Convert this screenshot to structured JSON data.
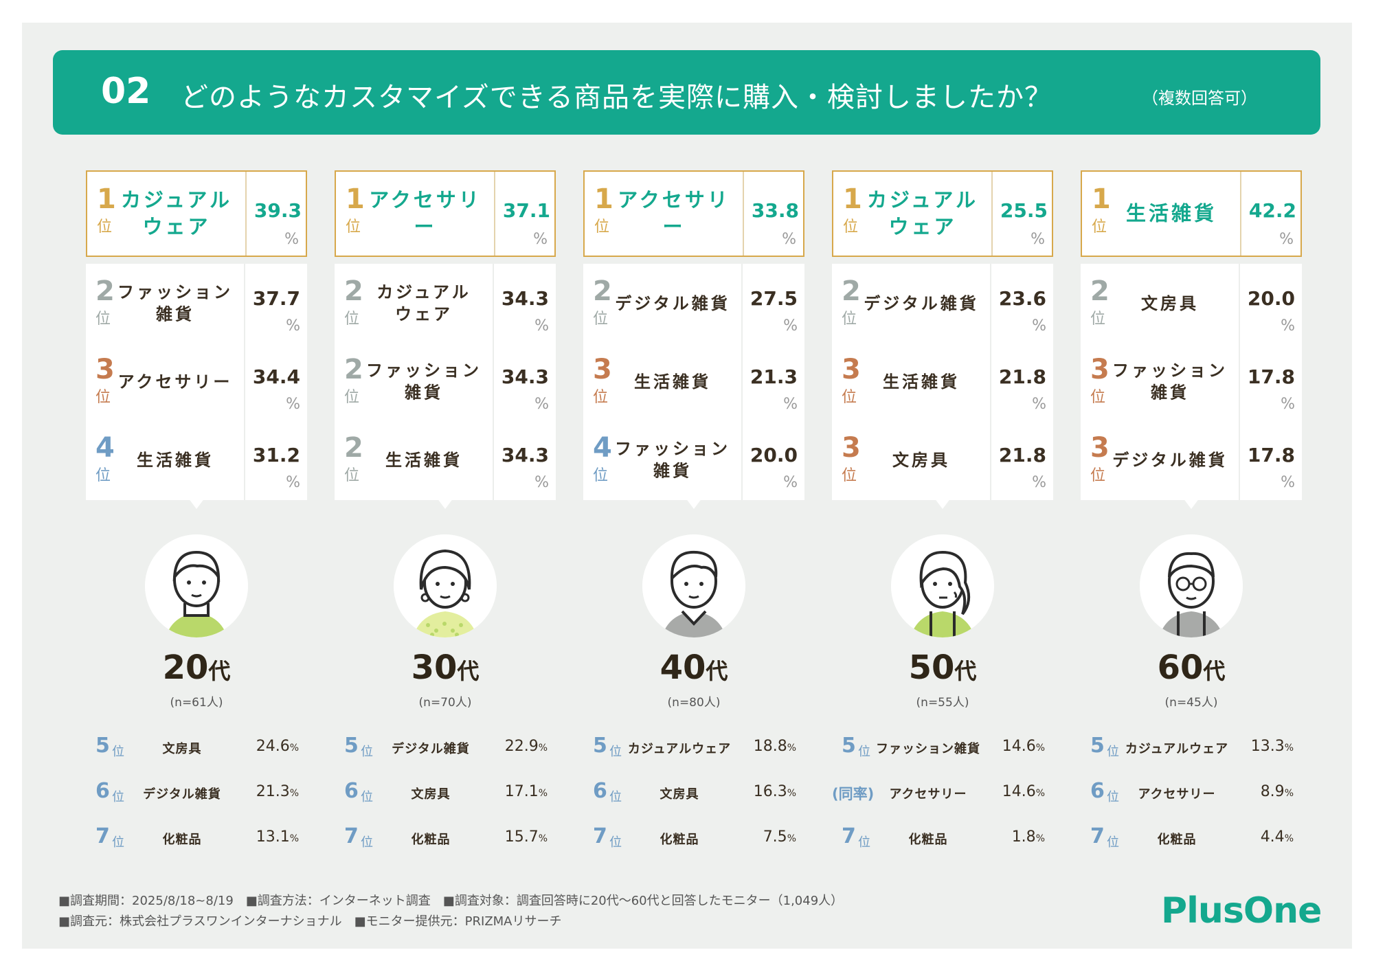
{
  "header": {
    "number": "02",
    "title": "どのようなカスタマイズできる商品を実際に購入・検討しましたか？",
    "note": "（複数回答可）"
  },
  "pos_label": "位",
  "pct_label": "%",
  "dai_label": "代",
  "colors": {
    "accent": "#14a88e",
    "gold": "#d7a84b",
    "silver": "#9fa9a6",
    "bronze": "#c57b4f",
    "blue": "#6f9cc4",
    "background": "#eef0ee"
  },
  "chart_data": {
    "type": "table",
    "title": "どのようなカスタマイズできる商品を実際に購入・検討しましたか？（複数回答可）",
    "unit": "%",
    "groups": [
      {
        "age": "20",
        "n": "(n=61人)",
        "avatar": "young-man-icon",
        "top": [
          {
            "rank": "1",
            "item": "カジュアル\nウェア",
            "value": 39.3,
            "medal": "gold"
          },
          {
            "rank": "2",
            "item": "ファッション\n雑貨",
            "value": 37.7,
            "medal": "silver"
          },
          {
            "rank": "3",
            "item": "アクセサリー",
            "value": 34.4,
            "medal": "bronze"
          },
          {
            "rank": "4",
            "item": "生活雑貨",
            "value": 31.2,
            "medal": "blue"
          }
        ],
        "others": [
          {
            "rank": "5",
            "item": "文房具",
            "value": 24.6
          },
          {
            "rank": "6",
            "item": "デジタル雑貨",
            "value": 21.3
          },
          {
            "rank": "7",
            "item": "化粧品",
            "value": 13.1
          }
        ]
      },
      {
        "age": "30",
        "n": "(n=70人)",
        "avatar": "woman-icon",
        "top": [
          {
            "rank": "1",
            "item": "アクセサリー",
            "value": 37.1,
            "medal": "gold"
          },
          {
            "rank": "2",
            "item": "カジュアル\nウェア",
            "value": 34.3,
            "medal": "silver"
          },
          {
            "rank": "2",
            "item": "ファッション\n雑貨",
            "value": 34.3,
            "medal": "silver"
          },
          {
            "rank": "2",
            "item": "生活雑貨",
            "value": 34.3,
            "medal": "silver"
          }
        ],
        "others": [
          {
            "rank": "5",
            "item": "デジタル雑貨",
            "value": 22.9
          },
          {
            "rank": "6",
            "item": "文房具",
            "value": 17.1
          },
          {
            "rank": "7",
            "item": "化粧品",
            "value": 15.7
          }
        ]
      },
      {
        "age": "40",
        "n": "(n=80人)",
        "avatar": "man-icon",
        "top": [
          {
            "rank": "1",
            "item": "アクセサリー",
            "value": 33.8,
            "medal": "gold"
          },
          {
            "rank": "2",
            "item": "デジタル雑貨",
            "value": 27.5,
            "medal": "silver"
          },
          {
            "rank": "3",
            "item": "生活雑貨",
            "value": 21.3,
            "medal": "bronze"
          },
          {
            "rank": "4",
            "item": "ファッション\n雑貨",
            "value": 20.0,
            "medal": "blue"
          }
        ],
        "others": [
          {
            "rank": "5",
            "item": "カジュアルウェア",
            "value": 18.8
          },
          {
            "rank": "6",
            "item": "文房具",
            "value": 16.3
          },
          {
            "rank": "7",
            "item": "化粧品",
            "value": 7.5
          }
        ]
      },
      {
        "age": "50",
        "n": "(n=55人)",
        "avatar": "middle-aged-woman-icon",
        "top": [
          {
            "rank": "1",
            "item": "カジュアル\nウェア",
            "value": 25.5,
            "medal": "gold"
          },
          {
            "rank": "2",
            "item": "デジタル雑貨",
            "value": 23.6,
            "medal": "silver"
          },
          {
            "rank": "3",
            "item": "生活雑貨",
            "value": 21.8,
            "medal": "bronze"
          },
          {
            "rank": "3",
            "item": "文房具",
            "value": 21.8,
            "medal": "bronze"
          }
        ],
        "others": [
          {
            "rank": "5",
            "item": "ファッション雑貨",
            "value": 14.6
          },
          {
            "rank": "(同率)",
            "item": "アクセサリー",
            "value": 14.6,
            "tie": true
          },
          {
            "rank": "7",
            "item": "化粧品",
            "value": 1.8
          }
        ]
      },
      {
        "age": "60",
        "n": "(n=45人)",
        "avatar": "older-man-with-glasses-icon",
        "top": [
          {
            "rank": "1",
            "item": "生活雑貨",
            "value": 42.2,
            "medal": "gold"
          },
          {
            "rank": "2",
            "item": "文房具",
            "value": 20.0,
            "medal": "silver"
          },
          {
            "rank": "3",
            "item": "ファッション\n雑貨",
            "value": 17.8,
            "medal": "bronze"
          },
          {
            "rank": "3",
            "item": "デジタル雑貨",
            "value": 17.8,
            "medal": "bronze"
          }
        ],
        "others": [
          {
            "rank": "5",
            "item": "カジュアルウェア",
            "value": 13.3
          },
          {
            "rank": "6",
            "item": "アクセサリー",
            "value": 8.9
          },
          {
            "rank": "7",
            "item": "化粧品",
            "value": 4.4
          }
        ]
      }
    ]
  },
  "footer": {
    "line1": "■調査期間：2025/8/18~8/19　■調査方法：インターネット調査　■調査対象：調査回答時に20代～60代と回答したモニター（1,049人）",
    "line2": "■調査元：株式会社プラスワンインターナショナル　■モニター提供元：PRIZMAリサーチ"
  },
  "logo": "PlusOne"
}
